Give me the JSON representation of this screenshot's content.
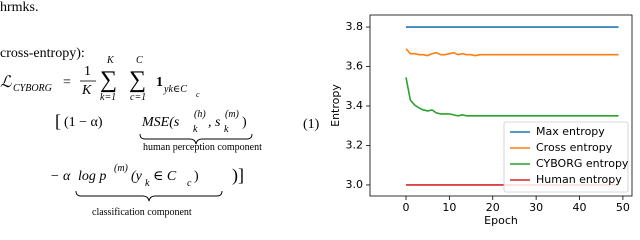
{
  "text": {
    "line1": "hrmks.",
    "line2": "cross-entropy):"
  },
  "equation": {
    "lhs": "ℒ",
    "lhs_sub": "CYBORG",
    "equals": "=",
    "frac_num": "1",
    "frac_den": "K",
    "sum_symbol": "∑",
    "sum1_top": "K",
    "sum1_bottom": "k=1",
    "sum2_top": "C",
    "sum2_bottom": "c=1",
    "indicator": "1",
    "indicator_sub": "yk∈C",
    "indicator_subsub": "c",
    "open_bracket": "[",
    "term1_coef": "(1 − α)",
    "mse": "MSE(s",
    "sup_h": "(h)",
    "sub_k": "k",
    "mse_sep": ", s",
    "sup_m": "(m)",
    "mse_close": ")",
    "term1_caption": "human perception component",
    "number": "(1)",
    "term2_coef": "− α",
    "logp": "log p",
    "arg_open": "(y",
    "arg_in": " ∈ C",
    "sub_c": "c",
    "arg_close": ")",
    "close_bracket": ")]",
    "term2_caption": "classification component"
  },
  "chart_data": {
    "type": "line",
    "x_label": "Epoch",
    "y_label": "Entropy",
    "x": [
      0,
      1,
      2,
      3,
      4,
      5,
      6,
      7,
      8,
      9,
      10,
      11,
      12,
      13,
      14,
      15,
      16,
      17,
      18,
      19,
      20,
      21,
      22,
      23,
      24,
      25,
      26,
      27,
      28,
      29,
      30,
      31,
      32,
      33,
      34,
      35,
      36,
      37,
      38,
      39,
      40,
      41,
      42,
      43,
      44,
      45,
      46,
      47,
      48,
      49
    ],
    "xlim": [
      -8.3,
      52.1
    ],
    "xticks": [
      0,
      10,
      20,
      30,
      40,
      50
    ],
    "ylim": [
      2.944,
      3.861
    ],
    "yticks": [
      {
        "value": 3,
        "label": "3.0"
      },
      3.2,
      3.4,
      3.6,
      3.8
    ],
    "legend": "lower right",
    "grid": false,
    "series": [
      {
        "name": "Max entropy",
        "color": "#1f77b4",
        "values": [
          3.8,
          3.8,
          3.8,
          3.8,
          3.8,
          3.8,
          3.8,
          3.8,
          3.8,
          3.8,
          3.8,
          3.8,
          3.8,
          3.8,
          3.8,
          3.8,
          3.8,
          3.8,
          3.8,
          3.8,
          3.8,
          3.8,
          3.8,
          3.8,
          3.8,
          3.8,
          3.8,
          3.8,
          3.8,
          3.8,
          3.8,
          3.8,
          3.8,
          3.8,
          3.8,
          3.8,
          3.8,
          3.8,
          3.8,
          3.8,
          3.8,
          3.8,
          3.8,
          3.8,
          3.8,
          3.8,
          3.8,
          3.8,
          3.8,
          3.8
        ]
      },
      {
        "name": "Cross entropy",
        "color": "#ff7f0e",
        "values": [
          3.69,
          3.665,
          3.665,
          3.66,
          3.66,
          3.655,
          3.665,
          3.67,
          3.66,
          3.66,
          3.665,
          3.67,
          3.66,
          3.665,
          3.66,
          3.66,
          3.655,
          3.66,
          3.66,
          3.66,
          3.66,
          3.66,
          3.66,
          3.66,
          3.66,
          3.66,
          3.66,
          3.66,
          3.66,
          3.66,
          3.66,
          3.66,
          3.66,
          3.66,
          3.66,
          3.66,
          3.66,
          3.66,
          3.66,
          3.66,
          3.66,
          3.66,
          3.66,
          3.66,
          3.66,
          3.66,
          3.66,
          3.66,
          3.66,
          3.66
        ]
      },
      {
        "name": "CYBORG entropy",
        "color": "#2ca02c",
        "values": [
          3.545,
          3.43,
          3.405,
          3.39,
          3.38,
          3.375,
          3.38,
          3.365,
          3.36,
          3.36,
          3.36,
          3.355,
          3.35,
          3.355,
          3.35,
          3.35,
          3.35,
          3.35,
          3.35,
          3.35,
          3.35,
          3.35,
          3.35,
          3.35,
          3.35,
          3.35,
          3.35,
          3.35,
          3.35,
          3.35,
          3.35,
          3.35,
          3.35,
          3.35,
          3.35,
          3.35,
          3.35,
          3.35,
          3.35,
          3.35,
          3.35,
          3.35,
          3.35,
          3.35,
          3.35,
          3.35,
          3.35,
          3.35,
          3.35,
          3.35
        ]
      },
      {
        "name": "Human entropy",
        "color": "#d62728",
        "values": [
          3.0,
          3.0,
          3.0,
          3.0,
          3.0,
          3.0,
          3.0,
          3.0,
          3.0,
          3.0,
          3.0,
          3.0,
          3.0,
          3.0,
          3.0,
          3.0,
          3.0,
          3.0,
          3.0,
          3.0,
          3.0,
          3.0,
          3.0,
          3.0,
          3.0,
          3.0,
          3.0,
          3.0,
          3.0,
          3.0,
          3.0,
          3.0,
          3.0,
          3.0,
          3.0,
          3.0,
          3.0,
          3.0,
          3.0,
          3.0,
          3.0,
          3.0,
          3.0,
          3.0,
          3.0,
          3.0,
          3.0,
          3.0,
          3.0,
          3.0
        ]
      }
    ]
  }
}
